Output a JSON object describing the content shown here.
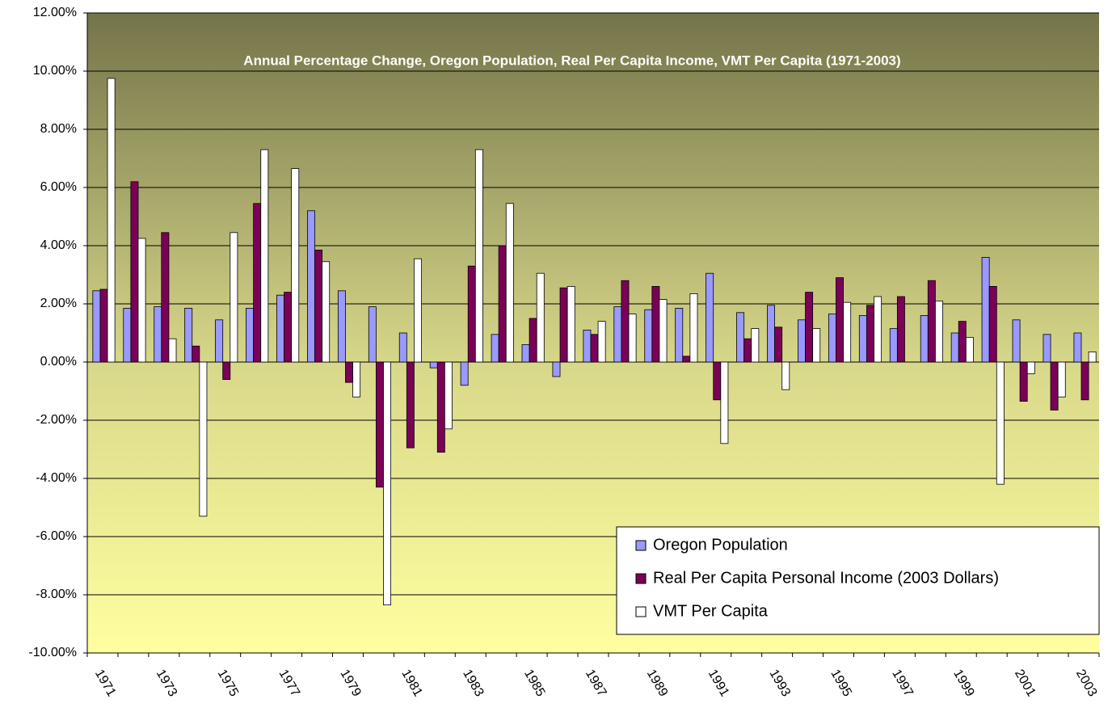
{
  "chart_data": {
    "type": "bar",
    "title": "Annual Percentage Change, Oregon Population, Real Per Capita Income, VMT Per Capita (1971-2003)",
    "categories": [
      "1971",
      null,
      "1973",
      null,
      "1975",
      null,
      "1977",
      null,
      "1979",
      null,
      "1981",
      null,
      "1983",
      null,
      "1985",
      null,
      "1987",
      null,
      "1989",
      null,
      "1991",
      null,
      "1993",
      null,
      "1995",
      null,
      "1997",
      null,
      "1999",
      null,
      "2001",
      null,
      "2003"
    ],
    "series": [
      {
        "name": "Oregon Population",
        "color": "#9999ff",
        "values": [
          2.45,
          1.85,
          1.9,
          1.85,
          1.45,
          1.85,
          2.3,
          5.2,
          2.45,
          1.9,
          1.0,
          -0.2,
          -0.8,
          0.95,
          0.6,
          -0.5,
          1.1,
          1.9,
          1.8,
          1.85,
          3.05,
          1.7,
          1.95,
          1.45,
          1.65,
          1.6,
          1.15,
          1.6,
          1.0,
          3.6,
          1.45,
          0.95,
          1.0
        ]
      },
      {
        "name": "Real Per Capita Personal Income (2003 Dollars)",
        "color": "#7a0058",
        "values": [
          2.5,
          6.2,
          4.45,
          0.55,
          -0.6,
          5.45,
          2.4,
          3.85,
          -0.7,
          -4.3,
          -2.95,
          -3.1,
          3.3,
          4.0,
          1.5,
          2.55,
          0.95,
          2.8,
          2.6,
          0.2,
          -1.3,
          0.8,
          1.2,
          2.4,
          2.9,
          1.95,
          2.25,
          2.8,
          1.4,
          2.6,
          -1.35,
          -1.65,
          -1.3
        ]
      },
      {
        "name": "VMT Per Capita",
        "color": "#ffffff",
        "values": [
          9.75,
          4.25,
          0.8,
          -5.3,
          4.45,
          7.3,
          6.65,
          3.45,
          -1.2,
          -8.35,
          3.55,
          -2.3,
          7.3,
          5.45,
          3.05,
          2.6,
          1.4,
          1.65,
          2.15,
          2.35,
          -2.8,
          1.15,
          -0.95,
          1.15,
          2.05,
          2.25,
          null,
          2.1,
          0.85,
          -4.2,
          -0.4,
          -1.2,
          0.35
        ]
      }
    ],
    "ylim": [
      -10,
      12
    ],
    "yticks": [
      {
        "value": -10,
        "label": "-10.00%"
      },
      {
        "value": -8,
        "label": "-8.00%"
      },
      {
        "value": -6,
        "label": "-6.00%"
      },
      {
        "value": -4,
        "label": "-4.00%"
      },
      {
        "value": -2,
        "label": "-2.00%"
      },
      {
        "value": 0,
        "label": "0.00%"
      },
      {
        "value": 2,
        "label": "2.00%"
      },
      {
        "value": 4,
        "label": "4.00%"
      },
      {
        "value": 6,
        "label": "6.00%"
      },
      {
        "value": 8,
        "label": "8.00%"
      },
      {
        "value": 10,
        "label": "10.00%"
      },
      {
        "value": 12,
        "label": "12.00%"
      }
    ],
    "grid": true,
    "legend": "lower right"
  }
}
